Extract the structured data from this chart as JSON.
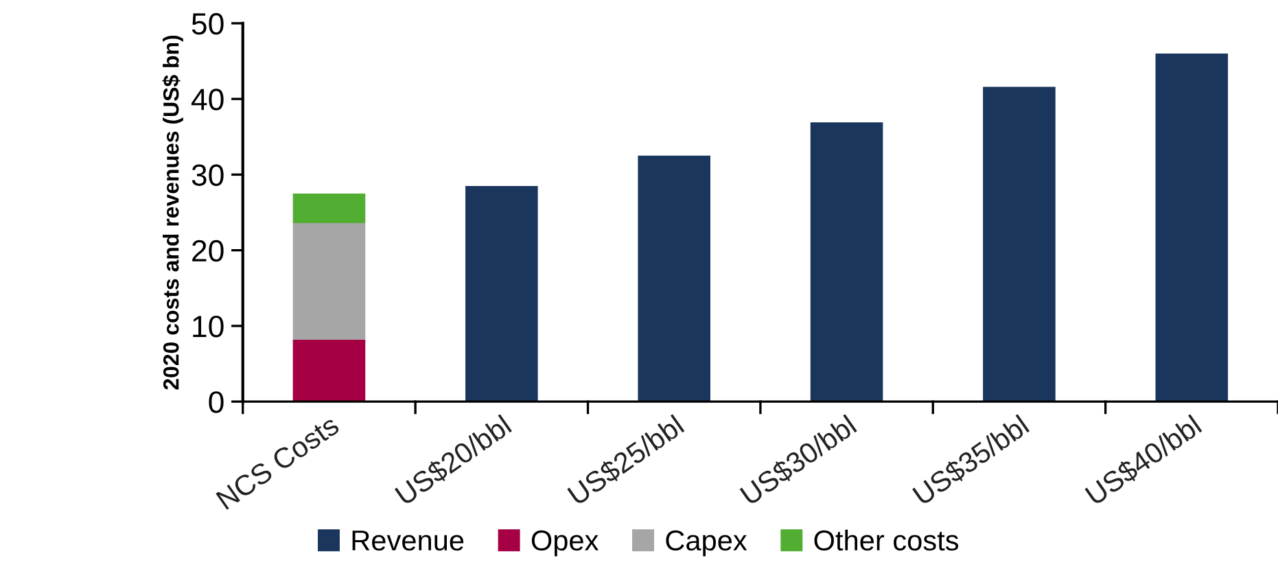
{
  "chart_data": {
    "type": "bar",
    "stacked": true,
    "ylabel": "2020 costs and revenues (US$ bn)",
    "categories": [
      "NCS Costs",
      "US$20/bbl",
      "US$25/bbl",
      "US$30/bbl",
      "US$35/bbl",
      "US$40/bbl"
    ],
    "series": [
      {
        "name": "Revenue",
        "color": "#1b365d",
        "values": [
          null,
          28.5,
          32.5,
          36.9,
          41.6,
          46.0
        ]
      },
      {
        "name": "Opex",
        "color": "#a50044",
        "values": [
          8.2,
          null,
          null,
          null,
          null,
          null
        ]
      },
      {
        "name": "Capex",
        "color": "#a6a6a6",
        "values": [
          15.4,
          null,
          null,
          null,
          null,
          null
        ]
      },
      {
        "name": "Other costs",
        "color": "#52ae32",
        "values": [
          3.9,
          null,
          null,
          null,
          null,
          null
        ]
      }
    ],
    "ylim": [
      0,
      50
    ],
    "yticks": [
      0,
      10,
      20,
      30,
      40,
      50
    ],
    "grid": false,
    "legend": "bottom"
  }
}
